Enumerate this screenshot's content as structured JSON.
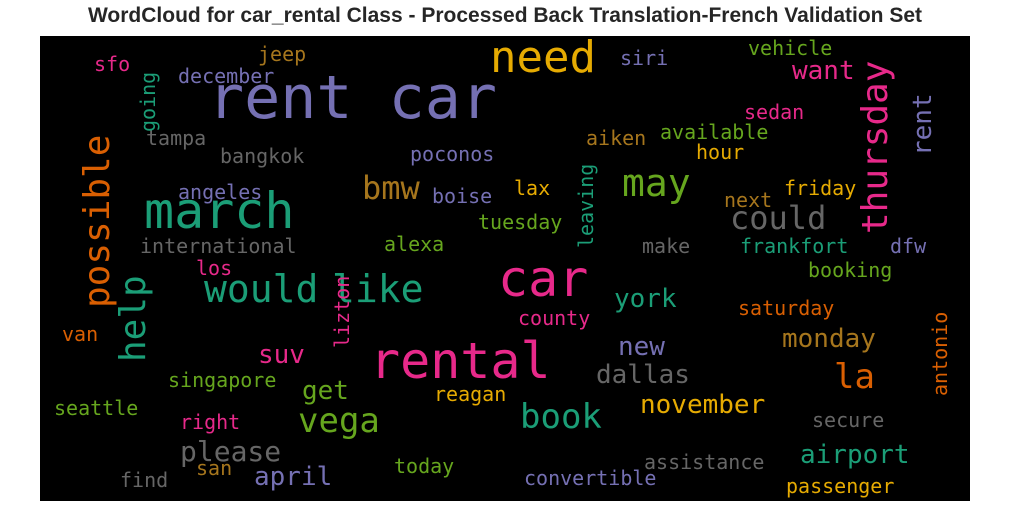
{
  "title": "WordCloud for car_rental Class - Processed Back Translation-French Validation Set",
  "colors": {
    "background": "#000000",
    "title": "#262626",
    "palette": [
      "#7570b3",
      "#1b9e77",
      "#e7298a",
      "#d95f02",
      "#66a61e",
      "#e6ab02",
      "#a6761d",
      "#666666"
    ]
  },
  "words": [
    "rent car",
    "march",
    "car",
    "rental",
    "need",
    "would",
    "like",
    "may",
    "thursday",
    "possible",
    "help",
    "bmw",
    "could",
    "vega",
    "book",
    "la",
    "please",
    "want",
    "york",
    "monday",
    "dallas",
    "november",
    "airport",
    "april",
    "get",
    "suv",
    "new",
    "rent",
    "jeep",
    "siri",
    "vehicle",
    "sfo",
    "december",
    "going",
    "tampa",
    "bangkok",
    "aiken",
    "available",
    "sedan",
    "poconos",
    "hour",
    "angeles",
    "boise",
    "lax",
    "friday",
    "next",
    "international",
    "tuesday",
    "leaving",
    "alexa",
    "make",
    "frankfort",
    "dfw",
    "los",
    "lizton",
    "booking",
    "van",
    "county",
    "saturday",
    "antonio",
    "singapore",
    "seattle",
    "reagan",
    "right",
    "secure",
    "san",
    "today",
    "assistance",
    "find",
    "convertible",
    "passenger"
  ]
}
